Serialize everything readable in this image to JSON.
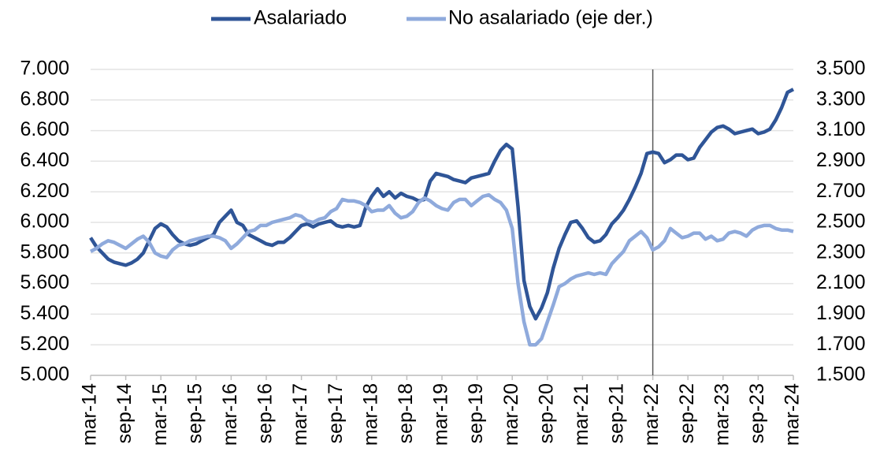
{
  "chart_data": {
    "type": "line",
    "categories": [
      "mar-14",
      null,
      null,
      null,
      null,
      null,
      "sep-14",
      null,
      null,
      null,
      null,
      null,
      "mar-15",
      null,
      null,
      null,
      null,
      null,
      "sep-15",
      null,
      null,
      null,
      null,
      null,
      "mar-16",
      null,
      null,
      null,
      null,
      null,
      "sep-16",
      null,
      null,
      null,
      null,
      null,
      "mar-17",
      null,
      null,
      null,
      null,
      null,
      "sep-17",
      null,
      null,
      null,
      null,
      null,
      "mar-18",
      null,
      null,
      null,
      null,
      null,
      "sep-18",
      null,
      null,
      null,
      null,
      null,
      "mar-19",
      null,
      null,
      null,
      null,
      null,
      "sep-19",
      null,
      null,
      null,
      null,
      null,
      "mar-20",
      null,
      null,
      null,
      null,
      null,
      "sep-20",
      null,
      null,
      null,
      null,
      null,
      "mar-21",
      null,
      null,
      null,
      null,
      null,
      "sep-21",
      null,
      null,
      null,
      null,
      null,
      "mar-22",
      null,
      null,
      null,
      null,
      null,
      "sep-22",
      null,
      null,
      null,
      null,
      null,
      "mar-23",
      null,
      null,
      null,
      null,
      null,
      "sep-23",
      null,
      null,
      null,
      null,
      null,
      "mar-24"
    ],
    "series": [
      {
        "name": "Asalariado",
        "color": "#2f5597",
        "axis": "y",
        "values": [
          5900,
          5840,
          5800,
          5760,
          5740,
          5730,
          5720,
          5735,
          5760,
          5800,
          5880,
          5960,
          5990,
          5970,
          5920,
          5880,
          5860,
          5850,
          5860,
          5880,
          5900,
          5920,
          6000,
          6040,
          6080,
          6000,
          5980,
          5920,
          5900,
          5880,
          5860,
          5850,
          5870,
          5870,
          5900,
          5940,
          5980,
          5990,
          5970,
          5990,
          6000,
          6010,
          5980,
          5970,
          5980,
          5970,
          5980,
          6100,
          6170,
          6220,
          6170,
          6200,
          6160,
          6190,
          6170,
          6160,
          6140,
          6150,
          6270,
          6320,
          6310,
          6300,
          6280,
          6270,
          6260,
          6290,
          6300,
          6310,
          6320,
          6400,
          6470,
          6510,
          6480,
          6100,
          5620,
          5450,
          5370,
          5440,
          5540,
          5700,
          5830,
          5920,
          6000,
          6010,
          5960,
          5900,
          5870,
          5880,
          5920,
          5990,
          6030,
          6080,
          6150,
          6230,
          6320,
          6450,
          6460,
          6450,
          6390,
          6410,
          6440,
          6440,
          6410,
          6420,
          6490,
          6540,
          6590,
          6620,
          6630,
          6610,
          6580,
          6590,
          6600,
          6610,
          6580,
          6590,
          6610,
          6670,
          6750,
          6850,
          6870
        ]
      },
      {
        "name": "No asalariado (eje der.)",
        "color": "#8faadc",
        "axis": "y2",
        "values": [
          2310,
          2330,
          2360,
          2380,
          2370,
          2350,
          2330,
          2360,
          2390,
          2410,
          2370,
          2300,
          2280,
          2270,
          2320,
          2350,
          2360,
          2380,
          2390,
          2400,
          2410,
          2410,
          2400,
          2380,
          2330,
          2360,
          2400,
          2440,
          2450,
          2480,
          2480,
          2500,
          2510,
          2520,
          2530,
          2550,
          2540,
          2510,
          2500,
          2520,
          2530,
          2570,
          2590,
          2650,
          2640,
          2640,
          2630,
          2610,
          2570,
          2580,
          2580,
          2610,
          2560,
          2530,
          2540,
          2570,
          2630,
          2660,
          2640,
          2610,
          2590,
          2580,
          2630,
          2650,
          2650,
          2610,
          2640,
          2670,
          2680,
          2650,
          2630,
          2580,
          2460,
          2100,
          1850,
          1700,
          1700,
          1740,
          1850,
          1960,
          2080,
          2100,
          2130,
          2150,
          2160,
          2170,
          2160,
          2170,
          2160,
          2230,
          2270,
          2310,
          2380,
          2410,
          2440,
          2400,
          2320,
          2340,
          2380,
          2460,
          2430,
          2400,
          2410,
          2430,
          2430,
          2390,
          2410,
          2380,
          2390,
          2430,
          2440,
          2430,
          2410,
          2450,
          2470,
          2480,
          2480,
          2460,
          2450,
          2450,
          2440
        ]
      }
    ],
    "ylim": [
      5000,
      7000
    ],
    "yticks": [
      {
        "value": 5000,
        "label": "5.000"
      },
      {
        "value": 5200,
        "label": "5.200"
      },
      {
        "value": 5400,
        "label": "5.400"
      },
      {
        "value": 5600,
        "label": "5.600"
      },
      {
        "value": 5800,
        "label": "5.800"
      },
      {
        "value": 6000,
        "label": "6.000"
      },
      {
        "value": 6200,
        "label": "6.200"
      },
      {
        "value": 6400,
        "label": "6.400"
      },
      {
        "value": 6600,
        "label": "6.600"
      },
      {
        "value": 6800,
        "label": "6.800"
      },
      {
        "value": 7000,
        "label": "7.000"
      }
    ],
    "y2lim": [
      1500,
      3500
    ],
    "y2ticks": [
      {
        "value": 1500,
        "label": "1.500"
      },
      {
        "value": 1700,
        "label": "1.700"
      },
      {
        "value": 1900,
        "label": "1.900"
      },
      {
        "value": 2100,
        "label": "2.100"
      },
      {
        "value": 2300,
        "label": "2.300"
      },
      {
        "value": 2500,
        "label": "2.500"
      },
      {
        "value": 2700,
        "label": "2.700"
      },
      {
        "value": 2900,
        "label": "2.900"
      },
      {
        "value": 3100,
        "label": "3.100"
      },
      {
        "value": 3300,
        "label": "3.300"
      },
      {
        "value": 3500,
        "label": "3.500"
      }
    ],
    "grid": true,
    "legend": "top",
    "vline_index": 96
  }
}
